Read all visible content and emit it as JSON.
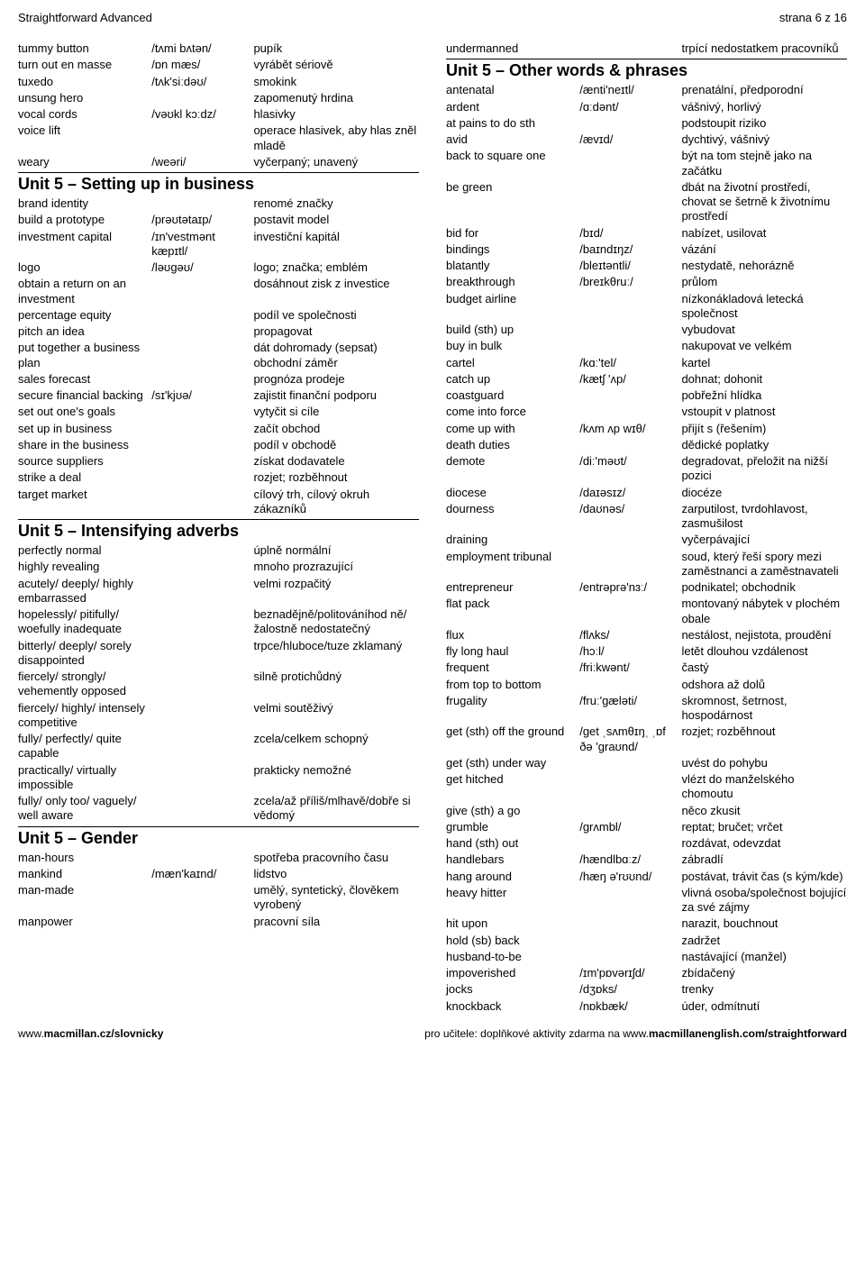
{
  "header": {
    "left": "Straightforward Advanced",
    "right": "strana 6 z 16"
  },
  "footer": {
    "left_plain": "www.",
    "left_bold": "macmillan.cz/slovnicky",
    "right_plain": "pro učitele: doplňkové aktivity zdarma na www.",
    "right_bold": "macmillanenglish.com/straightforward"
  },
  "left": [
    {
      "type": "row",
      "c1": "tummy button",
      "c2": "/tʌmi bʌtən/",
      "c3": "pupík"
    },
    {
      "type": "row",
      "c1": "turn out en masse",
      "c2": "/ɒn mæs/",
      "c3": "vyrábět sériově"
    },
    {
      "type": "row",
      "c1": "tuxedo",
      "c2": "/tʌk'siːdəʊ/",
      "c3": "smokink"
    },
    {
      "type": "row",
      "c1": "unsung hero",
      "c2": "",
      "c3": "zapomenutý hrdina"
    },
    {
      "type": "row",
      "c1": "vocal cords",
      "c2": "/vəʊkl kɔːdz/",
      "c3": "hlasivky"
    },
    {
      "type": "row",
      "c1": "voice lift",
      "c2": "",
      "c3": "operace hlasivek, aby hlas zněl mladě"
    },
    {
      "type": "row",
      "c1": "weary",
      "c2": "/weəri/",
      "c3": "vyčerpaný; unavený"
    },
    {
      "type": "title",
      "text": "Unit 5 – Setting up in business"
    },
    {
      "type": "row",
      "c1": "brand identity",
      "c2": "",
      "c3": "renomé značky"
    },
    {
      "type": "row",
      "c1": "build a prototype",
      "c2": "/prəʊtətaɪp/",
      "c3": "postavit model"
    },
    {
      "type": "row",
      "c1": "investment capital",
      "c2": "/ɪn'vestmənt kæpɪtl/",
      "c3": "investiční kapitál"
    },
    {
      "type": "row",
      "c1": "logo",
      "c2": "/ləʊgəʊ/",
      "c3": "logo; značka; emblém"
    },
    {
      "type": "row",
      "c1": "obtain a return on an investment",
      "c2": "",
      "c3": "dosáhnout zisk z investice"
    },
    {
      "type": "row",
      "c1": "percentage equity",
      "c2": "",
      "c3": "podíl ve společnosti"
    },
    {
      "type": "row",
      "c1": "pitch an idea",
      "c2": "",
      "c3": "propagovat"
    },
    {
      "type": "row",
      "c1": "put together a business plan",
      "c2": "",
      "c3": "dát dohromady (sepsat) obchodní záměr"
    },
    {
      "type": "row",
      "c1": "sales forecast",
      "c2": "",
      "c3": "prognóza prodeje"
    },
    {
      "type": "row",
      "c1": "secure financial backing",
      "c2": "/sɪ'kjʊə/",
      "c3": "zajistit finanční podporu"
    },
    {
      "type": "row",
      "c1": "set out one's goals",
      "c2": "",
      "c3": "vytyčit si cíle"
    },
    {
      "type": "row",
      "c1": "set up in business",
      "c2": "",
      "c3": "začít obchod"
    },
    {
      "type": "row",
      "c1": "share in the business",
      "c2": "",
      "c3": "podíl v obchodě"
    },
    {
      "type": "row",
      "c1": "source suppliers",
      "c2": "",
      "c3": "získat dodavatele"
    },
    {
      "type": "row",
      "c1": "strike a deal",
      "c2": "",
      "c3": "rozjet; rozběhnout"
    },
    {
      "type": "row",
      "c1": "target market",
      "c2": "",
      "c3": "cílový trh, cílový okruh zákazníků"
    },
    {
      "type": "title",
      "text": "Unit 5 – Intensifying adverbs"
    },
    {
      "type": "row",
      "c1": "perfectly normal",
      "c2": "",
      "c3": "úplně normální"
    },
    {
      "type": "row",
      "c1": "highly revealing",
      "c2": "",
      "c3": "mnoho prozrazující"
    },
    {
      "type": "row",
      "c1": "acutely/ deeply/ highly embarrassed",
      "c2": "",
      "c3": "velmi rozpačitý"
    },
    {
      "type": "row",
      "c1": "hopelessly/ pitifully/ woefully inadequate",
      "c2": "",
      "c3": "beznadějně/politováníhod ně/žalostně nedostatečný"
    },
    {
      "type": "row",
      "c1": "bitterly/ deeply/ sorely disappointed",
      "c2": "",
      "c3": "trpce/hluboce/tuze zklamaný"
    },
    {
      "type": "row",
      "c1": "fiercely/ strongly/ vehemently opposed",
      "c2": "",
      "c3": "silně protichůdný"
    },
    {
      "type": "row",
      "c1": "fiercely/ highly/ intensely competitive",
      "c2": "",
      "c3": "velmi soutěživý"
    },
    {
      "type": "row",
      "c1": "fully/ perfectly/ quite capable",
      "c2": "",
      "c3": "zcela/celkem schopný"
    },
    {
      "type": "row",
      "c1": "practically/ virtually impossible",
      "c2": "",
      "c3": "prakticky nemožné"
    },
    {
      "type": "row",
      "c1": "fully/ only too/ vaguely/ well aware",
      "c2": "",
      "c3": "zcela/až příliš/mlhavě/dobře si vědomý"
    },
    {
      "type": "title",
      "text": "Unit 5 – Gender"
    },
    {
      "type": "row",
      "c1": "man-hours",
      "c2": "",
      "c3": "spotřeba pracovního času"
    },
    {
      "type": "row",
      "c1": "mankind",
      "c2": "/mæn'kaɪnd/",
      "c3": "lidstvo"
    },
    {
      "type": "row",
      "c1": "man-made",
      "c2": "",
      "c3": "umělý, syntetický, člověkem vyrobený"
    },
    {
      "type": "row",
      "c1": "manpower",
      "c2": "",
      "c3": "pracovní síla"
    }
  ],
  "right": [
    {
      "type": "row",
      "c1": "undermanned",
      "c2": "",
      "c3": "trpící nedostatkem pracovníků"
    },
    {
      "type": "title",
      "text": "Unit 5 – Other words & phrases"
    },
    {
      "type": "row",
      "c1": "antenatal",
      "c2": "/ænti'neɪtl/",
      "c3": "prenatální, předporodní"
    },
    {
      "type": "row",
      "c1": "ardent",
      "c2": "/ɑːdənt/",
      "c3": "vášnivý, horlivý"
    },
    {
      "type": "row",
      "c1": "at pains to do sth",
      "c2": "",
      "c3": "podstoupit riziko"
    },
    {
      "type": "row",
      "c1": "avid",
      "c2": "/ævɪd/",
      "c3": "dychtivý, vášnivý"
    },
    {
      "type": "row",
      "c1": "back to square one",
      "c2": "",
      "c3": "být na tom stejně jako na začátku"
    },
    {
      "type": "row",
      "c1": "be green",
      "c2": "",
      "c3": "dbát na životní prostředí, chovat se šetrně k životnímu prostředí"
    },
    {
      "type": "row",
      "c1": "bid for",
      "c2": "/bɪd/",
      "c3": "nabízet, usilovat"
    },
    {
      "type": "row",
      "c1": "bindings",
      "c2": "/baɪndɪŋz/",
      "c3": "vázání"
    },
    {
      "type": "row",
      "c1": "blatantly",
      "c2": "/bleɪtəntli/",
      "c3": "nestydatě, nehorázně"
    },
    {
      "type": "row",
      "c1": "breakthrough",
      "c2": "/breɪkθruː/",
      "c3": "průlom"
    },
    {
      "type": "row",
      "c1": "budget airline",
      "c2": "",
      "c3": "nízkonákladová letecká společnost"
    },
    {
      "type": "row",
      "c1": "build (sth) up",
      "c2": "",
      "c3": "vybudovat"
    },
    {
      "type": "row",
      "c1": "buy in bulk",
      "c2": "",
      "c3": "nakupovat ve velkém"
    },
    {
      "type": "row",
      "c1": "cartel",
      "c2": "/kɑː'tel/",
      "c3": "kartel"
    },
    {
      "type": "row",
      "c1": "catch up",
      "c2": "/kætʃ 'ʌp/",
      "c3": "dohnat; dohonit"
    },
    {
      "type": "row",
      "c1": "coastguard",
      "c2": "",
      "c3": "pobřežní hlídka"
    },
    {
      "type": "row",
      "c1": "come into force",
      "c2": "",
      "c3": "vstoupit v platnost"
    },
    {
      "type": "row",
      "c1": "come up with",
      "c2": "/kʌm ʌp wɪθ/",
      "c3": "přijít s (řešením)"
    },
    {
      "type": "row",
      "c1": "death duties",
      "c2": "",
      "c3": "dědické poplatky"
    },
    {
      "type": "row",
      "c1": "demote",
      "c2": "/diː'məʊt/",
      "c3": "degradovat, přeložit na nižší pozici"
    },
    {
      "type": "row",
      "c1": "diocese",
      "c2": "/daɪəsɪz/",
      "c3": "diocéze"
    },
    {
      "type": "row",
      "c1": "dourness",
      "c2": "/daʊnəs/",
      "c3": "zarputilost, tvrdohlavost, zasmušilost"
    },
    {
      "type": "row",
      "c1": "draining",
      "c2": "",
      "c3": "vyčerpávající"
    },
    {
      "type": "row",
      "c1": "employment tribunal",
      "c2": "",
      "c3": "soud, který řeší spory mezi zaměstnanci a zaměstnavateli"
    },
    {
      "type": "row",
      "c1": "entrepreneur",
      "c2": "/entrəprə'nɜː/",
      "c3": "podnikatel; obchodník"
    },
    {
      "type": "row",
      "c1": "flat pack",
      "c2": "",
      "c3": "montovaný nábytek v plochém obale"
    },
    {
      "type": "row",
      "c1": "flux",
      "c2": "/flʌks/",
      "c3": "nestálost, nejistota, proudění"
    },
    {
      "type": "row",
      "c1": "fly long haul",
      "c2": "/hɔːl/",
      "c3": "letět dlouhou vzdálenost"
    },
    {
      "type": "row",
      "c1": "frequent",
      "c2": "/friːkwənt/",
      "c3": "častý"
    },
    {
      "type": "row",
      "c1": "from top to bottom",
      "c2": "",
      "c3": "odshora až dolů"
    },
    {
      "type": "row",
      "c1": "frugality",
      "c2": "/fruː'gæləti/",
      "c3": "skromnost, šetrnost, hospodárnost"
    },
    {
      "type": "row",
      "c1": "get (sth) off the ground",
      "c2": "/get ˌsʌmθɪŋˌ ˌɒf ðə 'graʊnd/",
      "c3": "rozjet; rozběhnout"
    },
    {
      "type": "row",
      "c1": "get (sth) under way",
      "c2": "",
      "c3": "uvést do pohybu"
    },
    {
      "type": "row",
      "c1": "get hitched",
      "c2": "",
      "c3": "vlézt do manželského chomoutu"
    },
    {
      "type": "row",
      "c1": "give (sth) a go",
      "c2": "",
      "c3": "něco zkusit"
    },
    {
      "type": "row",
      "c1": "grumble",
      "c2": "/grʌmbl/",
      "c3": "reptat; bručet; vrčet"
    },
    {
      "type": "row",
      "c1": "hand (sth) out",
      "c2": "",
      "c3": "rozdávat, odevzdat"
    },
    {
      "type": "row",
      "c1": "handlebars",
      "c2": "/hændlbɑːz/",
      "c3": "zábradlí"
    },
    {
      "type": "row",
      "c1": "hang around",
      "c2": "/hæŋ ə'rʊʊnd/",
      "c3": "postávat, trávit čas (s kým/kde)"
    },
    {
      "type": "row",
      "c1": "heavy hitter",
      "c2": "",
      "c3": "vlivná osoba/společnost bojující za své zájmy"
    },
    {
      "type": "row",
      "c1": "hit upon",
      "c2": "",
      "c3": "narazit, bouchnout"
    },
    {
      "type": "row",
      "c1": "hold (sb) back",
      "c2": "",
      "c3": "zadržet"
    },
    {
      "type": "row",
      "c1": "husband-to-be",
      "c2": "",
      "c3": "nastávající (manžel)"
    },
    {
      "type": "row",
      "c1": "impoverished",
      "c2": "/ɪm'pɒvərɪʃd/",
      "c3": "zbídačený"
    },
    {
      "type": "row",
      "c1": "jocks",
      "c2": "/dʒɒks/",
      "c3": "trenky"
    },
    {
      "type": "row",
      "c1": "knockback",
      "c2": "/nɒkbæk/",
      "c3": "úder, odmítnutí"
    }
  ]
}
